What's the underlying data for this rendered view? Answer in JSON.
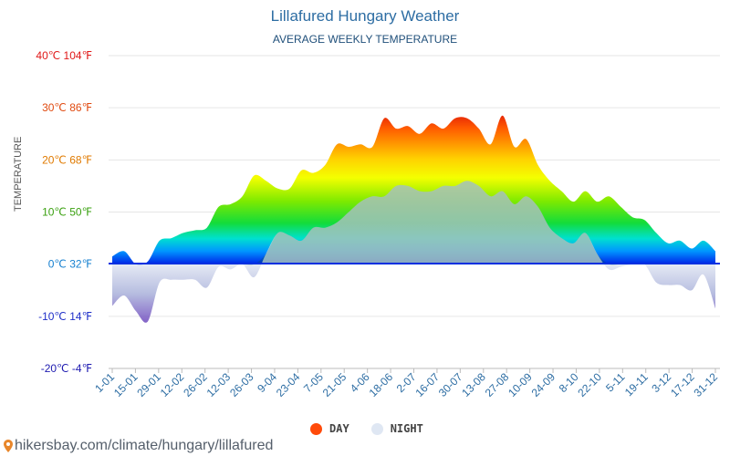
{
  "title": "Lillafured Hungary Weather",
  "subtitle": "AVERAGE WEEKLY TEMPERATURE",
  "footer": "hikersbay.com/climate/hungary/lillafured",
  "chart_data": {
    "type": "area",
    "ylabel": "TEMPERATURE",
    "ylim": [
      -20,
      40
    ],
    "grid": true,
    "legend_position": "bottom",
    "y_ticks": [
      {
        "value": 40,
        "label": "40℃ 104℉",
        "color": "#e01818"
      },
      {
        "value": 30,
        "label": "30℃ 86℉",
        "color": "#e04a10"
      },
      {
        "value": 20,
        "label": "20℃ 68℉",
        "color": "#e07a00"
      },
      {
        "value": 10,
        "label": "10℃ 50℉",
        "color": "#3aa010"
      },
      {
        "value": 0,
        "label": "0℃ 32℉",
        "color": "#1680d0"
      },
      {
        "value": -10,
        "label": "-10℃ 14℉",
        "color": "#1e2ec8"
      },
      {
        "value": -20,
        "label": "-20℃ -4℉",
        "color": "#1e1ab0"
      }
    ],
    "x_tick_labels": [
      "1-01",
      "15-01",
      "29-01",
      "12-02",
      "26-02",
      "12-03",
      "26-03",
      "9-04",
      "23-04",
      "7-05",
      "21-05",
      "4-06",
      "18-06",
      "2-07",
      "16-07",
      "30-07",
      "13-08",
      "27-08",
      "10-09",
      "24-09",
      "8-10",
      "22-10",
      "5-11",
      "19-11",
      "3-12",
      "17-12",
      "31-12"
    ],
    "series": [
      {
        "name": "DAY",
        "color": "#ff4a0a",
        "values": [
          1.5,
          2.5,
          0,
          0.5,
          4.5,
          5,
          6,
          6.5,
          7,
          11,
          11.5,
          13,
          17,
          16,
          14.5,
          14.5,
          18,
          17.5,
          19,
          23,
          22.5,
          23,
          22.5,
          28,
          26,
          26.5,
          25,
          27,
          26,
          28,
          28,
          26,
          23,
          28.5,
          22.5,
          24,
          19,
          16,
          14,
          12,
          14,
          12,
          13,
          11,
          9,
          8.5,
          6,
          4,
          4.5,
          3,
          4.5,
          2.5
        ]
      },
      {
        "name": "NIGHT",
        "color": "#dfe7f3",
        "values": [
          -8,
          -6,
          -9,
          -11,
          -3.5,
          -3,
          -3,
          -3,
          -4.5,
          -0.5,
          -1,
          0,
          -2.5,
          2,
          6,
          5.5,
          4.5,
          7,
          7,
          8,
          10,
          12,
          13,
          13,
          15,
          15,
          14,
          14,
          15,
          15,
          16,
          15,
          13,
          14,
          11.5,
          13,
          11,
          7,
          5,
          4,
          6,
          2,
          -1,
          -0.5,
          0,
          0,
          -3.5,
          -4,
          -4,
          -5,
          -2,
          -8.5
        ]
      }
    ]
  }
}
